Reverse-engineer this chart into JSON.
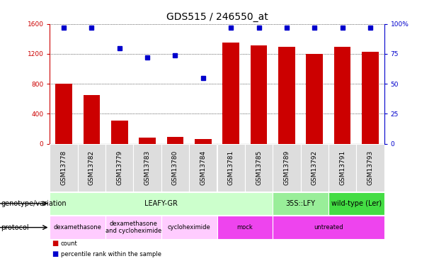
{
  "title": "GDS515 / 246550_at",
  "samples": [
    "GSM13778",
    "GSM13782",
    "GSM13779",
    "GSM13783",
    "GSM13780",
    "GSM13784",
    "GSM13781",
    "GSM13785",
    "GSM13789",
    "GSM13792",
    "GSM13791",
    "GSM13793"
  ],
  "counts": [
    800,
    650,
    310,
    80,
    90,
    60,
    1350,
    1310,
    1290,
    1200,
    1290,
    1225
  ],
  "percentiles": [
    97,
    97,
    80,
    72,
    74,
    55,
    97,
    97,
    97,
    97,
    97,
    97
  ],
  "ylim_left": [
    0,
    1600
  ],
  "ylim_right": [
    0,
    100
  ],
  "yticks_left": [
    0,
    400,
    800,
    1200,
    1600
  ],
  "yticks_right": [
    0,
    25,
    50,
    75,
    100
  ],
  "ytick_labels_right": [
    "0",
    "25",
    "50",
    "75",
    "100%"
  ],
  "bar_color": "#cc0000",
  "dot_color": "#0000cc",
  "genotype_groups": [
    {
      "label": "LEAFY-GR",
      "start": 0,
      "end": 8,
      "color": "#ccffcc"
    },
    {
      "label": "35S::LFY",
      "start": 8,
      "end": 10,
      "color": "#99ee99"
    },
    {
      "label": "wild-type (Ler)",
      "start": 10,
      "end": 12,
      "color": "#44dd44"
    }
  ],
  "protocol_groups": [
    {
      "label": "dexamethasone",
      "start": 0,
      "end": 2,
      "color": "#ffccff"
    },
    {
      "label": "dexamethasone\nand cycloheximide",
      "start": 2,
      "end": 4,
      "color": "#ffccff"
    },
    {
      "label": "cycloheximide",
      "start": 4,
      "end": 6,
      "color": "#ffccff"
    },
    {
      "label": "mock",
      "start": 6,
      "end": 8,
      "color": "#ee44ee"
    },
    {
      "label": "untreated",
      "start": 8,
      "end": 12,
      "color": "#ee44ee"
    }
  ],
  "legend_count_color": "#cc0000",
  "legend_pct_color": "#0000cc",
  "tick_fontsize": 6.5,
  "title_fontsize": 10,
  "annot_fontsize": 7,
  "bar_label_fontsize": 6
}
